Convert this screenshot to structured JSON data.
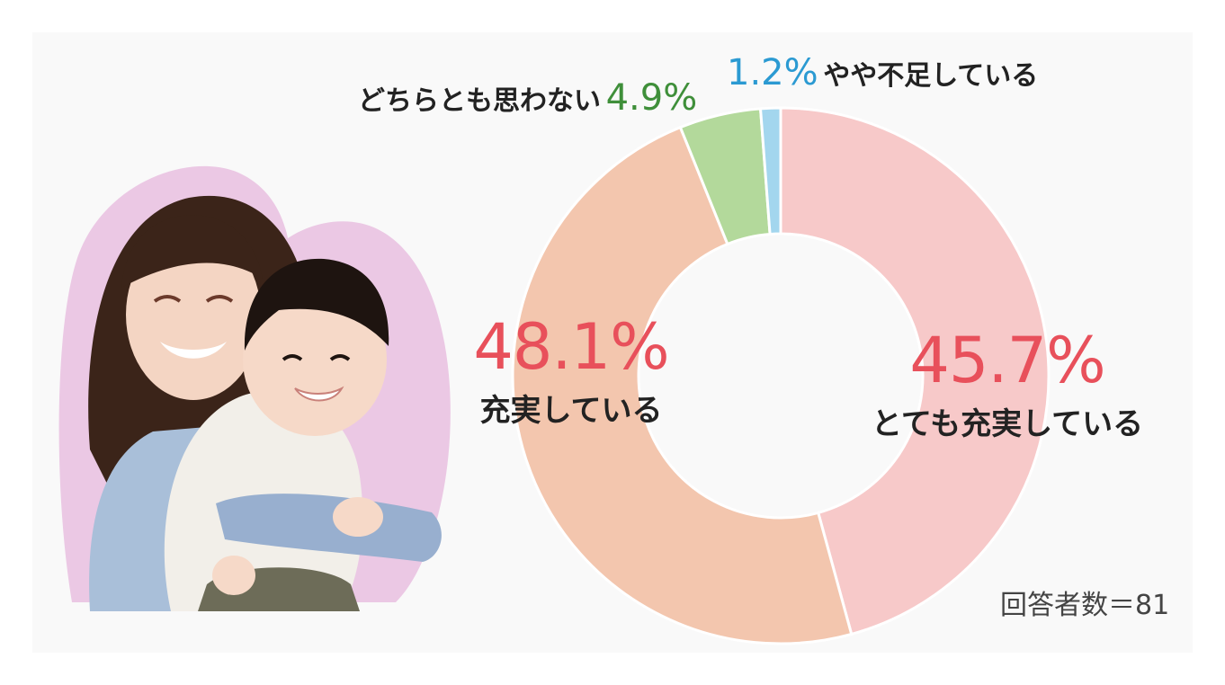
{
  "chart_data": {
    "type": "pie",
    "variant": "donut",
    "title": "",
    "slices": [
      {
        "label": "とても充実している",
        "pct_label": "45.7%",
        "value": 45.7,
        "color": "#f7c9c9"
      },
      {
        "label": "充実している",
        "pct_label": "48.1%",
        "value": 48.1,
        "color": "#f3c6ae"
      },
      {
        "label": "どちらとも思わない",
        "pct_label": "4.9%",
        "value": 4.9,
        "color": "#b3d99b"
      },
      {
        "label": "やや不足している",
        "pct_label": "1.2%",
        "value": 1.2,
        "color": "#a3d6ee"
      }
    ],
    "label_colors": {
      "big": "#e8505b",
      "green": "#3f8f3a",
      "blue": "#2b9ad2"
    },
    "note": "回答者数＝81"
  },
  "photo": {
    "icon": "mother-and-child-photo",
    "backdrop_color": "#ebc8e4"
  }
}
